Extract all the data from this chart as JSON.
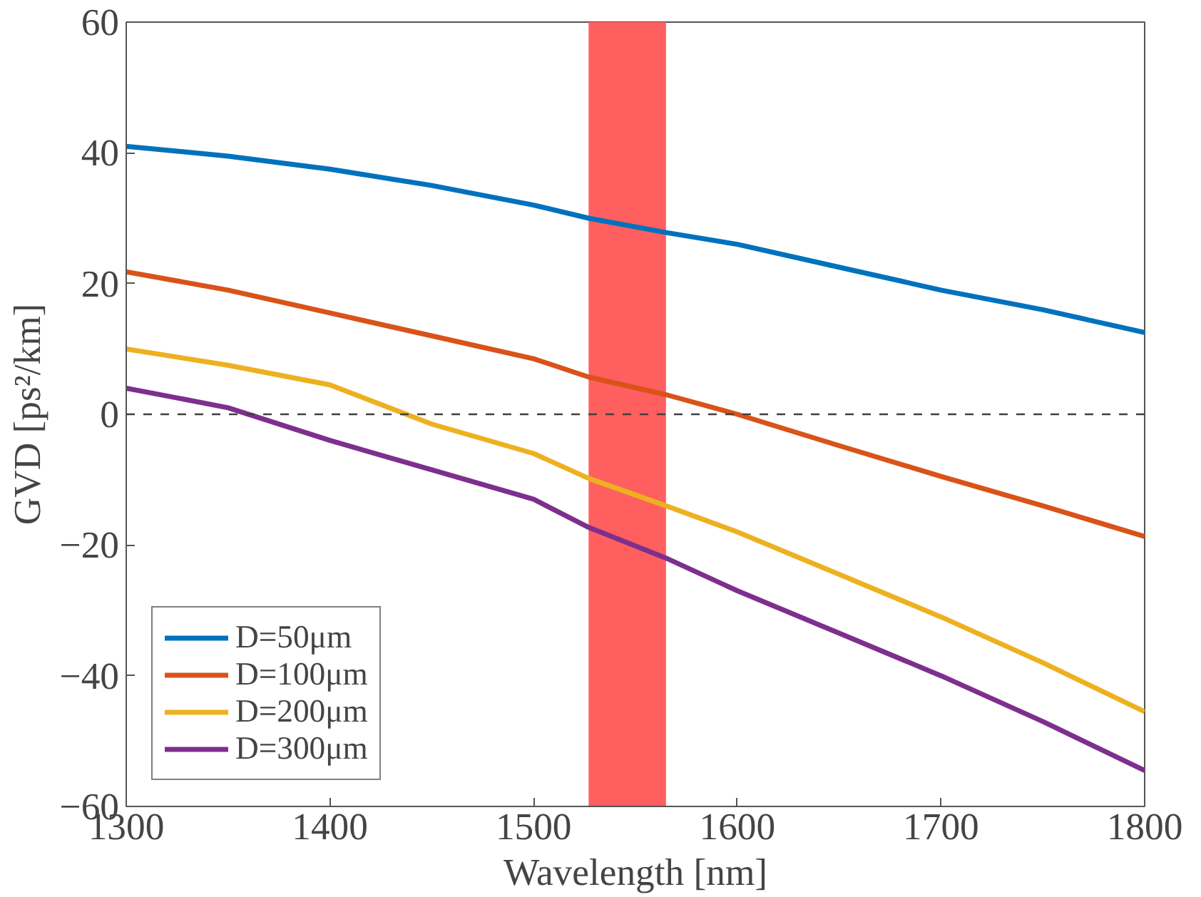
{
  "chart_data": {
    "type": "line",
    "xlabel": "Wavelength [nm]",
    "ylabel": "GVD [ps²/km]",
    "x": [
      1300,
      1350,
      1400,
      1450,
      1500,
      1527,
      1565,
      1600,
      1650,
      1700,
      1750,
      1800
    ],
    "series": [
      {
        "name": "D=50μm",
        "color": "#0072bd",
        "values": [
          41,
          39.5,
          37.5,
          35,
          32,
          30,
          27.8,
          26,
          22.5,
          19,
          16,
          12.5
        ]
      },
      {
        "name": "D=100μm",
        "color": "#d95319",
        "values": [
          21.8,
          19,
          15.5,
          12,
          8.5,
          5.7,
          3,
          0,
          -4.8,
          -9.5,
          -14,
          -18.7
        ]
      },
      {
        "name": "D=200μm",
        "color": "#edb120",
        "values": [
          10,
          7.5,
          4.5,
          -1.5,
          -6,
          -9.8,
          -14,
          -18,
          -24.5,
          -31,
          -38,
          -45.5
        ]
      },
      {
        "name": "D=300μm",
        "color": "#7e2f8e",
        "values": [
          4,
          1,
          -4,
          -8.5,
          -13,
          -17.3,
          -22,
          -27,
          -33.5,
          -40,
          -47,
          -54.5
        ]
      }
    ],
    "xlim": [
      1300,
      1800
    ],
    "ylim": [
      -60,
      60
    ],
    "xticks": [
      1300,
      1400,
      1500,
      1600,
      1700,
      1800
    ],
    "yticks": [
      -60,
      -40,
      -20,
      0,
      20,
      40,
      60
    ],
    "ref_lines": [
      {
        "axis": "y",
        "value": 0,
        "label": null,
        "color": "#404040",
        "line_style": "dashed"
      }
    ],
    "bands": [
      {
        "axis": "x",
        "from": 1527,
        "to": 1565,
        "label": null,
        "color": "#ff5f5f"
      }
    ],
    "legend": "bottom left",
    "grid": false,
    "line_style": "solid",
    "marker": "none"
  }
}
